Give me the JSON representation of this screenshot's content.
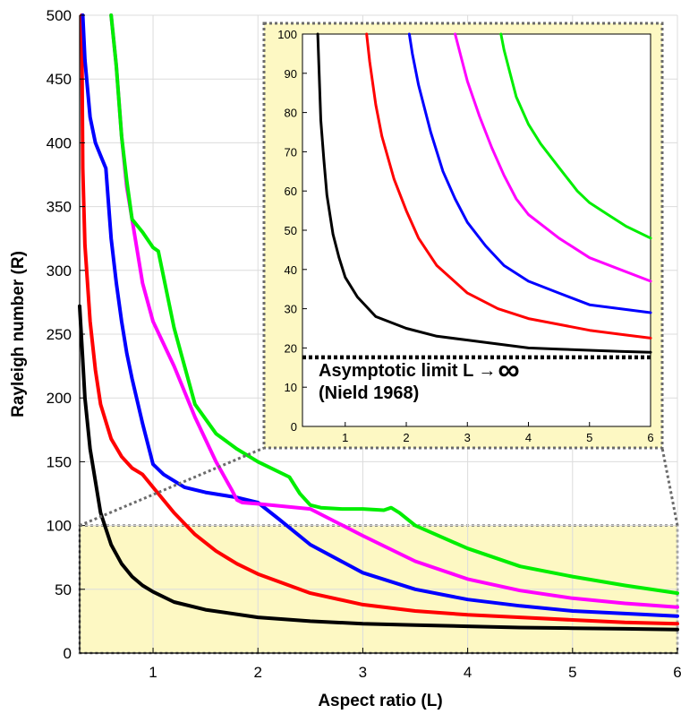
{
  "chart_data": [
    {
      "type": "line",
      "xlabel": "Aspect ratio (L)",
      "ylabel": "Rayleigh number (R)",
      "xlim": [
        0.3,
        6
      ],
      "ylim": [
        0,
        500
      ],
      "xticks": [
        "1",
        "2",
        "3",
        "4",
        "5",
        "6"
      ],
      "yticks": [
        "0",
        "50",
        "100",
        "150",
        "200",
        "250",
        "300",
        "350",
        "400",
        "450",
        "500"
      ],
      "grid": true,
      "highlight_region": {
        "x": [
          0.3,
          6
        ],
        "y": [
          0,
          100
        ],
        "color": "#fdf8c3"
      },
      "series": [
        {
          "color": "#000000",
          "x": [
            0.3,
            0.35,
            0.4,
            0.5,
            0.6,
            0.7,
            0.8,
            0.9,
            1.0,
            1.2,
            1.5,
            2.0,
            2.5,
            3.0,
            3.5,
            4.0,
            4.5,
            5.0,
            5.5,
            6.0
          ],
          "y": [
            272,
            200,
            160,
            110,
            85,
            70,
            60,
            53,
            48,
            40,
            34,
            28,
            25,
            23,
            22,
            21,
            20,
            19.5,
            19,
            18.5
          ]
        },
        {
          "color": "#ff0000",
          "x": [
            0.32,
            0.33,
            0.35,
            0.4,
            0.45,
            0.5,
            0.6,
            0.7,
            0.8,
            0.9,
            1.0,
            1.2,
            1.4,
            1.6,
            1.8,
            2.0,
            2.5,
            3.0,
            3.5,
            4.0,
            4.5,
            5.0,
            5.5,
            6.0
          ],
          "y": [
            500,
            380,
            320,
            260,
            222,
            195,
            168,
            154,
            145,
            140,
            130,
            110,
            93,
            80,
            70,
            62,
            47,
            38,
            33,
            30,
            28,
            26,
            24,
            23
          ]
        },
        {
          "color": "#0000ff",
          "x": [
            0.33,
            0.35,
            0.4,
            0.45,
            0.5,
            0.55,
            0.6,
            0.65,
            0.7,
            0.75,
            0.8,
            0.9,
            1.0,
            1.1,
            1.3,
            1.5,
            1.8,
            2.0,
            2.2,
            2.5,
            3.0,
            3.5,
            4.0,
            4.5,
            5.0,
            5.5,
            6.0
          ],
          "y": [
            500,
            465,
            420,
            400,
            390,
            380,
            325,
            290,
            260,
            235,
            215,
            180,
            148,
            140,
            130,
            126,
            122,
            118,
            105,
            85,
            63,
            50,
            42,
            37,
            33,
            31,
            29
          ]
        },
        {
          "color": "#ff00ff",
          "x": [
            0.6,
            0.65,
            0.7,
            0.75,
            0.8,
            0.9,
            1.0,
            1.2,
            1.4,
            1.6,
            1.75,
            1.8,
            1.85,
            2.0,
            2.5,
            3.0,
            3.5,
            4.0,
            4.5,
            5.0,
            5.5,
            6.0
          ],
          "y": [
            500,
            460,
            405,
            365,
            340,
            290,
            260,
            225,
            185,
            150,
            128,
            120,
            118,
            117,
            113,
            92,
            72,
            58,
            49,
            43,
            39,
            36
          ]
        },
        {
          "color": "#00ee00",
          "x": [
            0.6,
            0.65,
            0.7,
            0.75,
            0.8,
            0.9,
            1.0,
            1.05,
            1.2,
            1.4,
            1.6,
            1.8,
            2.0,
            2.3,
            2.4,
            2.5,
            2.6,
            2.8,
            3.0,
            3.2,
            3.27,
            3.35,
            3.5,
            4.0,
            4.5,
            5.0,
            5.5,
            6.0
          ],
          "y": [
            500,
            460,
            405,
            370,
            340,
            330,
            318,
            315,
            255,
            195,
            172,
            160,
            150,
            138,
            125,
            116,
            114,
            113,
            113,
            112,
            114,
            110,
            100,
            82,
            68,
            60,
            53,
            47
          ]
        }
      ]
    },
    {
      "type": "line",
      "xlim": [
        0.3,
        6
      ],
      "ylim": [
        0,
        100
      ],
      "xticks": [
        "1",
        "2",
        "3",
        "4",
        "5",
        "6"
      ],
      "yticks": [
        "0",
        "10",
        "20",
        "30",
        "40",
        "50",
        "60",
        "70",
        "80",
        "90",
        "100"
      ],
      "grid": false,
      "background": "#ffffff",
      "asymptote": {
        "y": 17.6,
        "style": "dotted",
        "label_line1": "Asymptotic limit L",
        "label_arrow": "→",
        "label_infinity": "∞",
        "label_line2": "(Nield 1968)"
      },
      "series": [
        {
          "color": "#000000",
          "x": [
            0.55,
            0.6,
            0.65,
            0.7,
            0.8,
            0.9,
            1.0,
            1.2,
            1.5,
            2.0,
            2.5,
            3.0,
            3.5,
            4.0,
            4.5,
            5.0,
            5.5,
            6.0
          ],
          "y": [
            100,
            78,
            68,
            59,
            49,
            43,
            38,
            33,
            28,
            25,
            23,
            22,
            21,
            20,
            19.7,
            19.4,
            19.1,
            18.9
          ]
        },
        {
          "color": "#ff0000",
          "x": [
            1.35,
            1.4,
            1.5,
            1.6,
            1.8,
            2.0,
            2.2,
            2.5,
            3.0,
            3.5,
            4.0,
            4.5,
            5.0,
            5.5,
            6.0
          ],
          "y": [
            100,
            93,
            82,
            74,
            63,
            55,
            48,
            41,
            34,
            30,
            27.5,
            26,
            24.5,
            23.5,
            22.5
          ]
        },
        {
          "color": "#0000ff",
          "x": [
            2.05,
            2.1,
            2.2,
            2.4,
            2.6,
            2.8,
            3.0,
            3.3,
            3.6,
            4.0,
            4.5,
            5.0,
            5.5,
            6.0
          ],
          "y": [
            100,
            95,
            87,
            75,
            65,
            58,
            52,
            46,
            41,
            37,
            34,
            31,
            30,
            29
          ]
        },
        {
          "color": "#ff00ff",
          "x": [
            2.8,
            2.9,
            3.0,
            3.2,
            3.4,
            3.6,
            3.8,
            4.0,
            4.5,
            5.0,
            5.5,
            6.0
          ],
          "y": [
            100,
            94,
            88,
            79,
            71,
            64,
            58,
            54,
            48,
            43,
            40,
            37
          ]
        },
        {
          "color": "#00ee00",
          "x": [
            3.55,
            3.6,
            3.7,
            3.8,
            4.0,
            4.2,
            4.5,
            4.8,
            5.0,
            5.3,
            5.6,
            6.0
          ],
          "y": [
            100,
            96,
            90,
            84,
            77,
            72,
            66,
            60,
            57,
            54,
            51,
            48
          ]
        }
      ]
    }
  ]
}
